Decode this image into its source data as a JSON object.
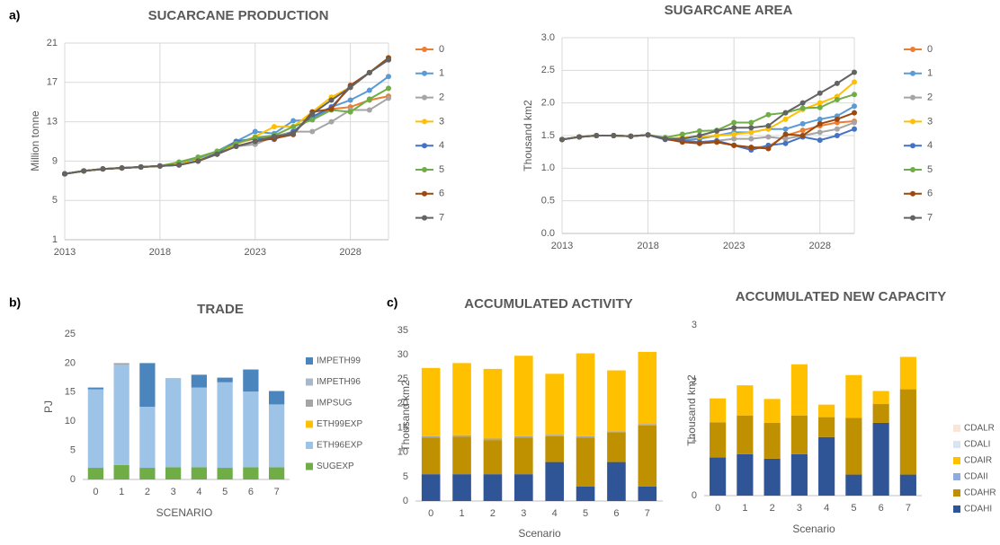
{
  "panel_labels": [
    "a)",
    "b)",
    "c)"
  ],
  "chart_data": [
    {
      "type": "line",
      "title": "SUCARCANE PRODUCTION",
      "y_label": "Million tonne",
      "x": [
        2013,
        2014,
        2015,
        2016,
        2017,
        2018,
        2019,
        2020,
        2021,
        2022,
        2023,
        2024,
        2025,
        2026,
        2027,
        2028,
        2029,
        2030
      ],
      "xlim": [
        2013,
        2030
      ],
      "xticks": [
        2013,
        2018,
        2023,
        2028
      ],
      "ylim": [
        1,
        21
      ],
      "yticks": [
        1,
        5,
        9,
        13,
        17,
        21
      ],
      "grid": true,
      "legend": "right",
      "series": [
        {
          "name": "0",
          "color": "#ed7d31",
          "values": [
            7.7,
            8.0,
            8.2,
            8.3,
            8.4,
            8.5,
            8.7,
            9.1,
            9.8,
            10.8,
            11.3,
            11.5,
            12.0,
            13.5,
            14.3,
            14.5,
            15.2,
            15.6
          ]
        },
        {
          "name": "1",
          "color": "#5b9bd5",
          "values": [
            7.7,
            8.0,
            8.2,
            8.3,
            8.4,
            8.5,
            8.8,
            9.2,
            10.0,
            11.0,
            12.0,
            11.8,
            13.1,
            13.2,
            14.5,
            15.2,
            16.2,
            17.6
          ]
        },
        {
          "name": "2",
          "color": "#a5a5a5",
          "values": [
            7.7,
            8.0,
            8.2,
            8.3,
            8.4,
            8.5,
            8.7,
            9.0,
            9.7,
            10.5,
            10.7,
            11.5,
            12.0,
            12.0,
            13.0,
            14.2,
            14.2,
            15.4
          ]
        },
        {
          "name": "3",
          "color": "#ffc000",
          "values": [
            7.7,
            8.0,
            8.2,
            8.3,
            8.4,
            8.5,
            8.7,
            9.1,
            9.8,
            10.7,
            11.5,
            12.5,
            12.5,
            14.0,
            15.5,
            16.5,
            18.0,
            19.5
          ]
        },
        {
          "name": "4",
          "color": "#4472c4",
          "values": [
            7.7,
            8.0,
            8.2,
            8.3,
            8.4,
            8.5,
            8.6,
            9.0,
            9.8,
            11.0,
            11.3,
            11.2,
            12.0,
            13.5,
            14.5,
            16.5,
            18.0,
            19.3
          ]
        },
        {
          "name": "5",
          "color": "#70ad47",
          "values": [
            7.7,
            8.0,
            8.2,
            8.3,
            8.4,
            8.5,
            8.9,
            9.4,
            10.0,
            10.8,
            11.4,
            11.6,
            12.5,
            13.2,
            14.2,
            14.0,
            15.3,
            16.4
          ]
        },
        {
          "name": "6",
          "color": "#9e480e",
          "values": [
            7.7,
            8.0,
            8.2,
            8.3,
            8.4,
            8.5,
            8.6,
            9.0,
            9.7,
            10.5,
            11.0,
            11.3,
            11.7,
            14.0,
            14.3,
            16.7,
            18.0,
            19.5
          ]
        },
        {
          "name": "7",
          "color": "#636363",
          "values": [
            7.7,
            8.0,
            8.2,
            8.3,
            8.4,
            8.5,
            8.6,
            9.0,
            9.7,
            10.5,
            11.0,
            11.5,
            11.8,
            13.8,
            15.2,
            16.5,
            18.0,
            19.3
          ]
        }
      ]
    },
    {
      "type": "line",
      "title": "SUGARCANE AREA",
      "y_label": "Thousand km2",
      "x": [
        2013,
        2014,
        2015,
        2016,
        2017,
        2018,
        2019,
        2020,
        2021,
        2022,
        2023,
        2024,
        2025,
        2026,
        2027,
        2028,
        2029,
        2030
      ],
      "xlim": [
        2013,
        2030
      ],
      "xticks": [
        2013,
        2018,
        2023,
        2028
      ],
      "ylim": [
        0,
        3
      ],
      "yticks": [
        {
          "value": 0,
          "label": "0.0"
        },
        0.5,
        {
          "value": 1,
          "label": "1.0"
        },
        1.5,
        {
          "value": 2,
          "label": "2.0"
        },
        2.5,
        {
          "value": 3,
          "label": "3.0"
        }
      ],
      "grid": true,
      "legend": "right",
      "series": [
        {
          "name": "0",
          "color": "#ed7d31",
          "values": [
            1.44,
            1.48,
            1.5,
            1.5,
            1.49,
            1.51,
            1.45,
            1.42,
            1.4,
            1.4,
            1.35,
            1.32,
            1.33,
            1.5,
            1.58,
            1.65,
            1.7,
            1.72
          ]
        },
        {
          "name": "1",
          "color": "#5b9bd5",
          "values": [
            1.44,
            1.48,
            1.5,
            1.5,
            1.49,
            1.51,
            1.45,
            1.43,
            1.45,
            1.5,
            1.55,
            1.55,
            1.6,
            1.6,
            1.68,
            1.75,
            1.8,
            1.95
          ]
        },
        {
          "name": "2",
          "color": "#a5a5a5",
          "values": [
            1.44,
            1.48,
            1.5,
            1.5,
            1.49,
            1.51,
            1.45,
            1.42,
            1.4,
            1.42,
            1.45,
            1.45,
            1.48,
            1.45,
            1.5,
            1.55,
            1.6,
            1.7
          ]
        },
        {
          "name": "3",
          "color": "#ffc000",
          "values": [
            1.44,
            1.48,
            1.5,
            1.5,
            1.49,
            1.51,
            1.45,
            1.47,
            1.48,
            1.5,
            1.52,
            1.55,
            1.6,
            1.75,
            1.9,
            2.0,
            2.1,
            2.32
          ]
        },
        {
          "name": "4",
          "color": "#4472c4",
          "values": [
            1.44,
            1.48,
            1.5,
            1.5,
            1.49,
            1.51,
            1.44,
            1.42,
            1.4,
            1.42,
            1.35,
            1.28,
            1.35,
            1.38,
            1.48,
            1.43,
            1.5,
            1.6
          ]
        },
        {
          "name": "5",
          "color": "#70ad47",
          "values": [
            1.44,
            1.48,
            1.5,
            1.5,
            1.49,
            1.51,
            1.47,
            1.52,
            1.57,
            1.58,
            1.7,
            1.7,
            1.82,
            1.85,
            1.92,
            1.93,
            2.05,
            2.13
          ]
        },
        {
          "name": "6",
          "color": "#9e480e",
          "values": [
            1.44,
            1.48,
            1.5,
            1.5,
            1.49,
            1.51,
            1.45,
            1.4,
            1.38,
            1.4,
            1.35,
            1.32,
            1.3,
            1.52,
            1.5,
            1.68,
            1.75,
            1.85
          ]
        },
        {
          "name": "7",
          "color": "#636363",
          "values": [
            1.44,
            1.48,
            1.5,
            1.5,
            1.49,
            1.51,
            1.45,
            1.45,
            1.5,
            1.57,
            1.62,
            1.62,
            1.65,
            1.85,
            2.0,
            2.15,
            2.3,
            2.47
          ]
        }
      ]
    },
    {
      "type": "stacked_bar",
      "title": "TRADE",
      "y_label": "PJ",
      "x_label": "SCENARIO",
      "categories": [
        "0",
        "1",
        "2",
        "3",
        "4",
        "5",
        "6",
        "7"
      ],
      "ylim": [
        0,
        25
      ],
      "yticks": [
        0,
        5,
        10,
        15,
        20,
        25
      ],
      "grid": false,
      "legend": "right",
      "series": [
        {
          "name": "SUGEXP",
          "color": "#70ad47",
          "values": [
            2.0,
            2.5,
            2.0,
            2.1,
            2.1,
            2.0,
            2.1,
            2.1
          ]
        },
        {
          "name": "ETH96EXP",
          "color": "#9dc3e6",
          "values": [
            13.5,
            17.2,
            10.5,
            15.2,
            13.7,
            14.7,
            13.0,
            10.8
          ]
        },
        {
          "name": "ETH99EXP",
          "color": "#ffc000",
          "values": [
            0,
            0,
            0,
            0,
            0,
            0,
            0,
            0
          ]
        },
        {
          "name": "IMPSUG",
          "color": "#a5a5a5",
          "values": [
            0,
            0.3,
            0,
            0.1,
            0,
            0,
            0,
            0
          ]
        },
        {
          "name": "IMPETH96",
          "color": "#a9b8c8",
          "values": [
            0,
            0,
            0,
            0,
            0,
            0,
            0,
            0
          ]
        },
        {
          "name": "IMPETH99",
          "color": "#4a86bd",
          "values": [
            0.3,
            0,
            7.5,
            0,
            2.2,
            0.8,
            3.8,
            2.3
          ]
        }
      ]
    },
    {
      "type": "stacked_bar",
      "title": "ACCUMULATED ACTIVITY",
      "y_label": "Thousand km2",
      "x_label": "Scenario",
      "categories": [
        "0",
        "1",
        "2",
        "3",
        "4",
        "5",
        "6",
        "7"
      ],
      "ylim": [
        0,
        35
      ],
      "yticks": [
        0,
        5,
        10,
        15,
        20,
        25,
        30,
        35
      ],
      "grid": false,
      "series": [
        {
          "color": "#2f5597",
          "values": [
            5.5,
            5.5,
            5.5,
            5.5,
            8.0,
            3.0,
            8.0,
            3.0
          ]
        },
        {
          "color": "#bf9000",
          "values": [
            7.5,
            7.7,
            7.0,
            7.5,
            5.3,
            10.0,
            6.0,
            12.5
          ]
        },
        {
          "color": "#a5a5a5",
          "values": [
            0.3,
            0.3,
            0.3,
            0.3,
            0.3,
            0.3,
            0.3,
            0.3
          ]
        },
        {
          "color": "#ffc000",
          "values": [
            14.0,
            14.8,
            14.3,
            16.5,
            12.5,
            17.0,
            12.5,
            14.8
          ]
        }
      ]
    },
    {
      "type": "stacked_bar",
      "title": "ACCUMULATED NEW CAPACITY",
      "y_label": "Thousand km2",
      "x_label": "Scenario",
      "categories": [
        "0",
        "1",
        "2",
        "3",
        "4",
        "5",
        "6",
        "7"
      ],
      "ylim": [
        0,
        3
      ],
      "yticks": [
        0,
        1,
        2,
        3
      ],
      "grid": false,
      "legend": "right",
      "series": [
        {
          "name": "CDAHI",
          "color": "#2f5597",
          "values": [
            0.67,
            0.73,
            0.65,
            0.73,
            1.03,
            0.37,
            1.28,
            0.37
          ]
        },
        {
          "name": "CDAHR",
          "color": "#bf9000",
          "values": [
            0.62,
            0.68,
            0.63,
            0.68,
            0.35,
            1.0,
            0.33,
            1.5
          ]
        },
        {
          "name": "CDAII",
          "color": "#8faadc",
          "values": [
            0,
            0,
            0,
            0,
            0,
            0,
            0,
            0
          ]
        },
        {
          "name": "CDAIR",
          "color": "#ffc000",
          "values": [
            0.42,
            0.53,
            0.42,
            0.9,
            0.22,
            0.75,
            0.23,
            0.57
          ]
        },
        {
          "name": "CDALI",
          "color": "#dae3f3",
          "values": [
            0,
            0,
            0,
            0,
            0,
            0,
            0,
            0
          ]
        },
        {
          "name": "CDALR",
          "color": "#fbe5d6",
          "values": [
            0,
            0,
            0,
            0,
            0,
            0,
            0,
            0
          ]
        }
      ]
    }
  ]
}
